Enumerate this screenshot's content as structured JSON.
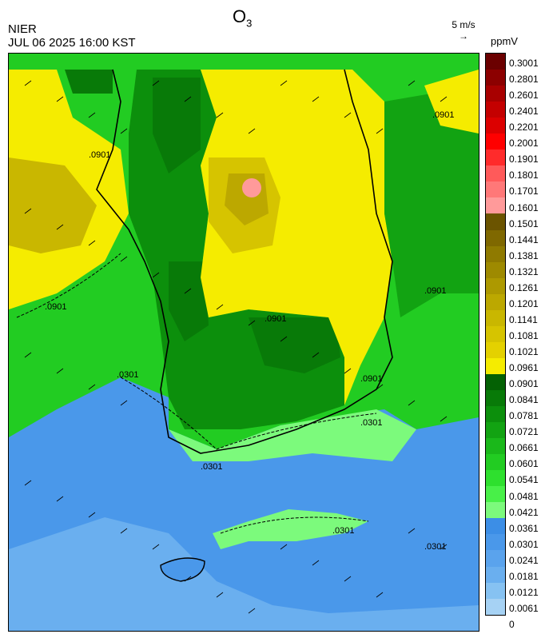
{
  "title": {
    "main": "O",
    "subscript": "3"
  },
  "agency": "NIER",
  "datetime": "JUL 06 2025 16:00 KST",
  "vector_reference": {
    "label": "5 m/s",
    "arrow": "→"
  },
  "unit": "ppmV",
  "contour_labels": [
    ".0901",
    ".0901",
    ".0901",
    ".0901",
    ".0901",
    ".0301",
    ".0301",
    ".0301",
    ".0301",
    ".0301",
    ".0901"
  ],
  "legend": {
    "labels": [
      "0.3001",
      "0.2801",
      "0.2601",
      "0.2401",
      "0.2201",
      "0.2001",
      "0.1901",
      "0.1801",
      "0.1701",
      "0.1601",
      "0.1501",
      "0.1441",
      "0.1381",
      "0.1321",
      "0.1261",
      "0.1201",
      "0.1141",
      "0.1081",
      "0.1021",
      "0.0961",
      "0.0901",
      "0.0841",
      "0.0781",
      "0.0721",
      "0.0661",
      "0.0601",
      "0.0541",
      "0.0481",
      "0.0421",
      "0.0361",
      "0.0301",
      "0.0241",
      "0.0181",
      "0.0121",
      "0.0061",
      "0"
    ],
    "colors": [
      "#6b0000",
      "#8c0000",
      "#a80000",
      "#c40000",
      "#dc0000",
      "#ff0000",
      "#ff2b2b",
      "#ff5a5a",
      "#ff7878",
      "#ff9a9a",
      "#6b5400",
      "#7f6800",
      "#8f7a00",
      "#9e8a00",
      "#ad9900",
      "#bca800",
      "#c9b700",
      "#d6c400",
      "#e4d100",
      "#f5ec00",
      "#046104",
      "#087a08",
      "#0c8f0c",
      "#12a312",
      "#1ab81a",
      "#22cc22",
      "#2ee02e",
      "#48f048",
      "#7cfa7c",
      "#3c8ee6",
      "#4a98ea",
      "#5aa3ed",
      "#6aafef",
      "#86c2f2",
      "#a6d2f4"
    ]
  },
  "icons": {
    "wind_arrow": "wind-vector-arrow-icon"
  }
}
